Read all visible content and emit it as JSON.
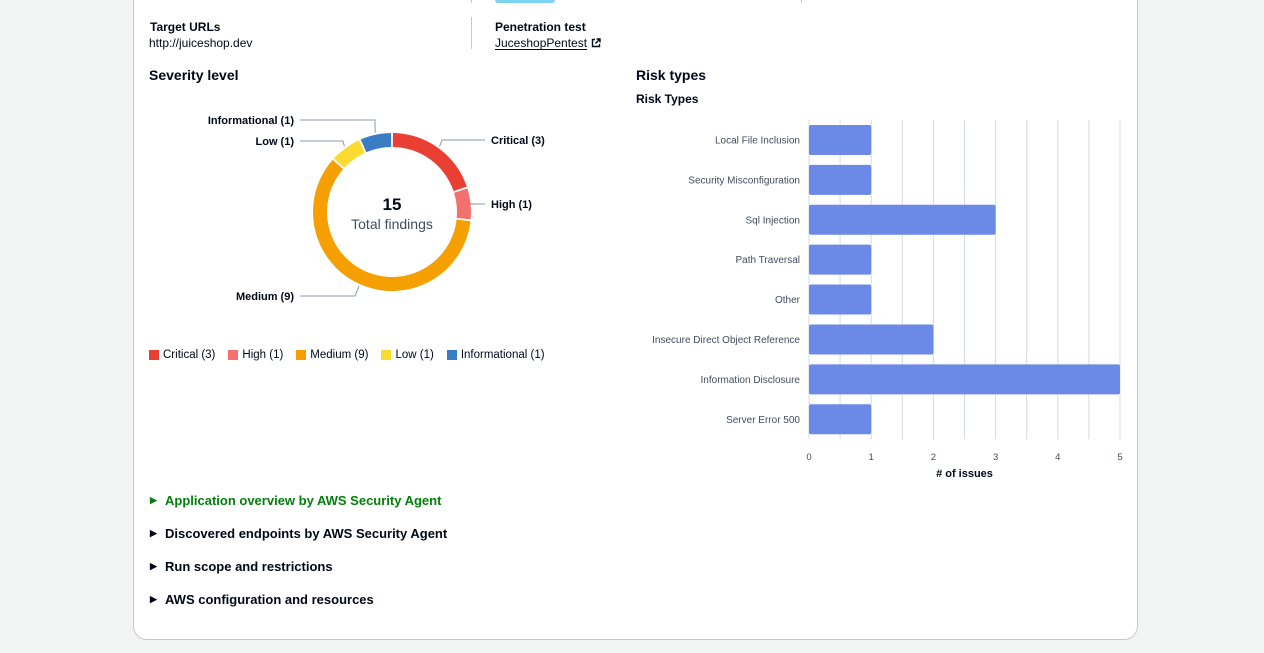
{
  "summary": {
    "target_urls_label": "Target URLs",
    "target_urls_value": "http://juiceshop.dev",
    "pentest_label": "Penetration test",
    "pentest_link": "JuceshopPentest"
  },
  "severity": {
    "title": "Severity level",
    "total": "15",
    "total_label": "Total findings",
    "slices": [
      {
        "name": "Critical",
        "count": 3,
        "label": "Critical (3)",
        "color": "#ea3f33"
      },
      {
        "name": "High",
        "count": 1,
        "label": "High (1)",
        "color": "#f2706d"
      },
      {
        "name": "Medium",
        "count": 9,
        "label": "Medium (9)",
        "color": "#f59f00"
      },
      {
        "name": "Low",
        "count": 1,
        "label": "Low (1)",
        "color": "#fadc30"
      },
      {
        "name": "Informational",
        "count": 1,
        "label": "Informational (1)",
        "color": "#3b7dc4"
      }
    ]
  },
  "risk": {
    "title": "Risk types",
    "subtitle": "Risk Types",
    "xlabel": "# of issues",
    "bar_color": "#6b8ae8"
  },
  "chart_data": [
    {
      "type": "pie",
      "title": "Severity level",
      "categories": [
        "Critical",
        "High",
        "Medium",
        "Low",
        "Informational"
      ],
      "values": [
        3,
        1,
        9,
        1,
        1
      ],
      "center_value": "15",
      "center_label": "Total findings"
    },
    {
      "type": "bar",
      "orientation": "horizontal",
      "title": "Risk Types",
      "categories": [
        "Local File Inclusion",
        "Security Misconfiguration",
        "Sql Injection",
        "Path Traversal",
        "Other",
        "Insecure Direct Object Reference",
        "Information Disclosure",
        "Server Error 500"
      ],
      "values": [
        1,
        1,
        3,
        1,
        1,
        2,
        5,
        1
      ],
      "xlabel": "# of issues",
      "xlim": [
        0,
        5
      ],
      "ticks": [
        "0",
        "1",
        "2",
        "3",
        "4",
        "5"
      ],
      "grid": true
    }
  ],
  "expanders": [
    {
      "label": "Application overview by AWS Security Agent"
    },
    {
      "label": "Discovered endpoints by AWS Security Agent"
    },
    {
      "label": "Run scope and restrictions"
    },
    {
      "label": "AWS configuration and resources"
    }
  ]
}
